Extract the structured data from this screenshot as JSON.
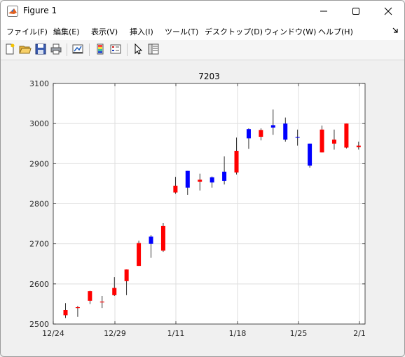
{
  "window": {
    "title": "Figure 1"
  },
  "menu": [
    {
      "label": "ファイル(F)"
    },
    {
      "label": "編集(E)"
    },
    {
      "label": "表示(V)"
    },
    {
      "label": "挿入(I)"
    },
    {
      "label": "ツール(T)"
    },
    {
      "label": "デスクトップ(D)"
    },
    {
      "label": "ウィンドウ(W)"
    },
    {
      "label": "ヘルプ(H)"
    }
  ],
  "toolbar": [
    "new-figure-icon",
    "open-file-icon",
    "save-icon",
    "print-icon",
    "link-plot-icon",
    "colorbar-icon",
    "legend-icon",
    "pointer-icon",
    "property-inspector-icon"
  ],
  "colors": {
    "up": "#ff0000",
    "down": "#0000ff",
    "wick": "#000000"
  },
  "chart_data": {
    "type": "candlestick",
    "title": "7203",
    "xlabel": "",
    "ylabel": "",
    "ylim": [
      2500,
      3100
    ],
    "xlim": [
      "12/24",
      "2/1"
    ],
    "yticks": [
      2500,
      2600,
      2700,
      2800,
      2900,
      3000,
      3100
    ],
    "xticks": [
      "12/24",
      "12/29",
      "1/11",
      "1/18",
      "1/25",
      "2/1"
    ],
    "grid": true,
    "candles": [
      {
        "x": 0,
        "open": 2535,
        "close": 2522,
        "high": 2552,
        "low": 2515
      },
      {
        "x": 1,
        "open": 2542,
        "close": 2540,
        "high": 2545,
        "low": 2518
      },
      {
        "x": 2,
        "open": 2582,
        "close": 2558,
        "high": 2583,
        "low": 2550
      },
      {
        "x": 3,
        "open": 2556,
        "close": 2554,
        "high": 2570,
        "low": 2540
      },
      {
        "x": 4,
        "open": 2590,
        "close": 2572,
        "high": 2617,
        "low": 2570
      },
      {
        "x": 5,
        "open": 2636,
        "close": 2607,
        "high": 2636,
        "low": 2572
      },
      {
        "x": 6,
        "open": 2702,
        "close": 2645,
        "high": 2708,
        "low": 2645
      },
      {
        "x": 7,
        "open": 2700,
        "close": 2718,
        "high": 2722,
        "low": 2665
      },
      {
        "x": 8,
        "open": 2745,
        "close": 2683,
        "high": 2752,
        "low": 2680
      },
      {
        "x": 9,
        "open": 2845,
        "close": 2828,
        "high": 2867,
        "low": 2825
      },
      {
        "x": 10,
        "open": 2840,
        "close": 2882,
        "high": 2882,
        "low": 2822
      },
      {
        "x": 11,
        "open": 2860,
        "close": 2855,
        "high": 2875,
        "low": 2833
      },
      {
        "x": 12,
        "open": 2853,
        "close": 2866,
        "high": 2868,
        "low": 2840
      },
      {
        "x": 13,
        "open": 2857,
        "close": 2880,
        "high": 2918,
        "low": 2848
      },
      {
        "x": 14,
        "open": 2932,
        "close": 2878,
        "high": 2965,
        "low": 2873
      },
      {
        "x": 15,
        "open": 2963,
        "close": 2986,
        "high": 2988,
        "low": 2937
      },
      {
        "x": 16,
        "open": 2984,
        "close": 2967,
        "high": 2988,
        "low": 2958
      },
      {
        "x": 17,
        "open": 2990,
        "close": 2996,
        "high": 3035,
        "low": 2972
      },
      {
        "x": 18,
        "open": 2960,
        "close": 3000,
        "high": 3015,
        "low": 2955
      },
      {
        "x": 19,
        "open": 2966,
        "close": 2967,
        "high": 2985,
        "low": 2945
      },
      {
        "x": 20,
        "open": 2895,
        "close": 2950,
        "high": 2950,
        "low": 2890
      },
      {
        "x": 21,
        "open": 2985,
        "close": 2928,
        "high": 2995,
        "low": 2928
      },
      {
        "x": 22,
        "open": 2960,
        "close": 2950,
        "high": 2985,
        "low": 2935
      },
      {
        "x": 23,
        "open": 3000,
        "close": 2940,
        "high": 3000,
        "low": 2938
      },
      {
        "x": 24,
        "open": 2945,
        "close": 2941,
        "high": 2955,
        "low": 2935
      }
    ]
  }
}
